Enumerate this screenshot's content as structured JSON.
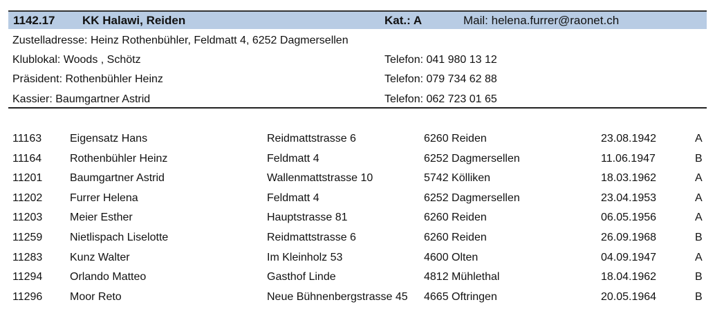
{
  "club": {
    "number": "1142.17",
    "name": "KK Halawi, Reiden",
    "category": "Kat.: A",
    "mail": "Mail: helena.furrer@raonet.ch",
    "address": "Zustelladresse: Heinz Rothenbühler, Feldmatt 4, 6252 Dagmersellen",
    "venue": "Klublokal: Woods , Schötz",
    "venue_phone": "Telefon: 041 980 13 12",
    "president": "Präsident: Rothenbühler Heinz",
    "president_phone": "Telefon: 079 734 62 88",
    "treasurer": "Kassier: Baumgartner Astrid",
    "treasurer_phone": "Telefon: 062 723 01 65",
    "header_color": "#b8cce4"
  },
  "members": [
    [
      "11163",
      "Eigensatz Hans",
      "Reidmattstrasse 6",
      "6260 Reiden",
      "23.08.1942",
      "A"
    ],
    [
      "11164",
      "Rothenbühler Heinz",
      "Feldmatt 4",
      "6252 Dagmersellen",
      "11.06.1947",
      "B"
    ],
    [
      "11201",
      "Baumgartner Astrid",
      "Wallenmattstrasse 10",
      "5742 Kölliken",
      "18.03.1962",
      "A"
    ],
    [
      "11202",
      "Furrer Helena",
      "Feldmatt 4",
      "6252 Dagmersellen",
      "23.04.1953",
      "A"
    ],
    [
      "11203",
      "Meier Esther",
      "Hauptstrasse 81",
      "6260 Reiden",
      "06.05.1956",
      "A"
    ],
    [
      "11259",
      "Nietlispach Liselotte",
      "Reidmattstrasse 6",
      "6260 Reiden",
      "26.09.1968",
      "B"
    ],
    [
      "11283",
      "Kunz Walter",
      "Im Kleinholz 53",
      "4600 Olten",
      "04.09.1947",
      "A"
    ],
    [
      "11294",
      "Orlando Matteo",
      "Gasthof Linde",
      "4812 Mühlethal",
      "18.04.1962",
      "B"
    ],
    [
      "11296",
      "Moor Reto",
      "Neue Bühnenbergstrasse 45",
      "4665 Oftringen",
      "20.05.1964",
      "B"
    ]
  ]
}
